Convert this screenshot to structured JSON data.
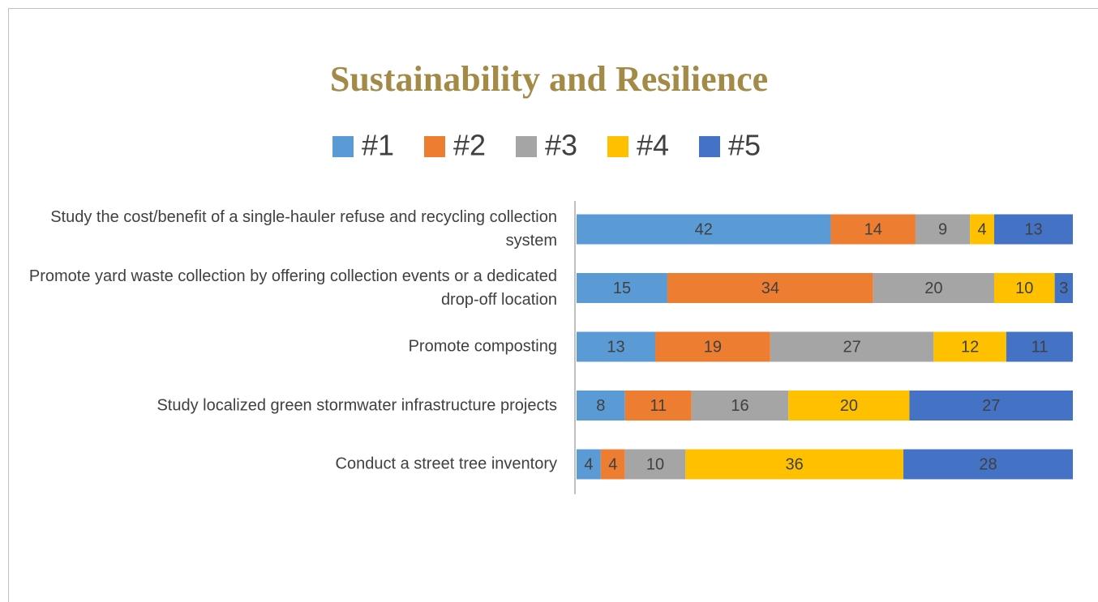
{
  "chart_data": {
    "type": "bar",
    "orientation": "horizontal",
    "stacking": "percent",
    "title": "Sustainability and Resilience",
    "categories": [
      "Study the cost/benefit of a single-hauler refuse and recycling collection system",
      "Promote yard waste collection by offering collection events or a dedicated drop-off location",
      "Promote composting",
      "Study localized green stormwater infrastructure projects",
      "Conduct a street tree inventory"
    ],
    "series": [
      {
        "name": "#1",
        "color": "#5b9bd5",
        "values": [
          42,
          15,
          13,
          8,
          4
        ]
      },
      {
        "name": "#2",
        "color": "#ed7d31",
        "values": [
          14,
          34,
          19,
          11,
          4
        ]
      },
      {
        "name": "#3",
        "color": "#a5a5a5",
        "values": [
          9,
          20,
          27,
          16,
          10
        ]
      },
      {
        "name": "#4",
        "color": "#ffc000",
        "values": [
          4,
          10,
          12,
          20,
          36
        ]
      },
      {
        "name": "#5",
        "color": "#4472c4",
        "values": [
          13,
          3,
          11,
          27,
          28
        ]
      }
    ],
    "legend": "top",
    "data_labels": true
  }
}
